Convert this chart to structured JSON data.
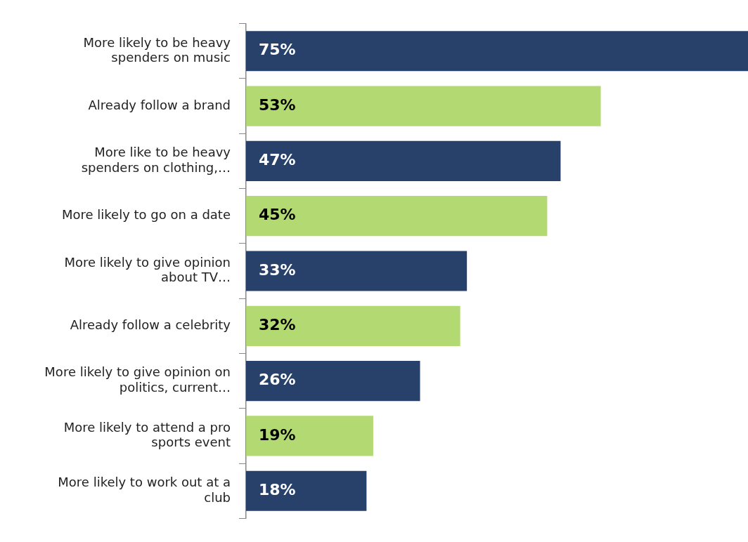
{
  "chart_data": {
    "type": "bar",
    "orientation": "horizontal",
    "categories": [
      "More likely to be heavy spenders on music",
      "Already follow a brand",
      "More like to be heavy spenders on clothing,…",
      "More likely to go on a date",
      "More likely to give opinion about TV…",
      "Already follow a celebrity",
      "More likely to give opinion on politics, current…",
      "More likely to attend a pro sports event",
      "More likely to work out at a club"
    ],
    "values": [
      75,
      53,
      47,
      45,
      33,
      32,
      26,
      19,
      18
    ],
    "colors": [
      "#27416b",
      "#b3d973",
      "#27416b",
      "#b3d973",
      "#27416b",
      "#b3d973",
      "#27416b",
      "#b3d973",
      "#27416b"
    ],
    "value_labels": [
      "75%",
      "53%",
      "47%",
      "45%",
      "33%",
      "32%",
      "26%",
      "19%",
      "18%"
    ],
    "tick_labels": "y"
  }
}
